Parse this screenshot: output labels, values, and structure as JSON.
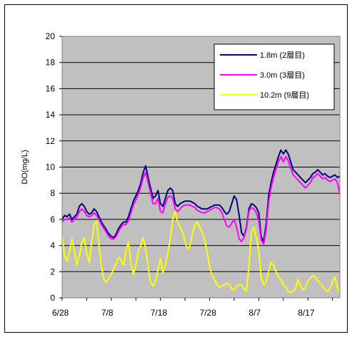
{
  "chart_data": {
    "type": "line",
    "title": "",
    "xlabel": "",
    "ylabel": "DO(mg/L)",
    "ylim": [
      0,
      20
    ],
    "xlim": [
      0,
      56.5
    ],
    "x_tick_labels": [
      "6/28",
      "7/8",
      "7/18",
      "7/28",
      "8/7",
      "8/17"
    ],
    "y_ticks": [
      0,
      2,
      4,
      6,
      8,
      10,
      12,
      14,
      16,
      18,
      20
    ],
    "y_tick_labels": [
      "0",
      "2",
      "4",
      "6",
      "8",
      "10",
      "12",
      "14",
      "16",
      "18",
      "20"
    ],
    "grid": "horizontal",
    "plot_background": "#c0c0c0",
    "legend_position": "top-right",
    "series": [
      {
        "name": "1.8m (2層目)",
        "color": "#000080",
        "x": [
          0,
          0.5,
          1,
          1.5,
          2,
          2.5,
          3,
          3.5,
          4,
          4.5,
          5,
          5.5,
          6,
          6.5,
          7,
          7.5,
          8,
          8.5,
          9,
          9.5,
          10,
          10.5,
          11,
          11.5,
          12,
          12.5,
          13,
          13.5,
          14,
          14.5,
          15,
          15.5,
          16,
          16.5,
          17,
          17.5,
          18,
          18.5,
          19,
          19.5,
          20,
          20.5,
          21,
          21.5,
          22,
          22.5,
          23,
          23.5,
          24,
          24.5,
          25,
          25.5,
          26,
          26.5,
          27,
          27.5,
          28,
          28.5,
          29,
          29.5,
          30,
          30.5,
          31,
          31.5,
          32,
          32.5,
          33,
          33.5,
          34,
          34.5,
          35,
          35.5,
          36,
          36.5,
          37,
          37.5,
          38,
          38.5,
          39,
          39.5,
          40,
          40.5,
          41,
          41.5,
          42,
          42.5,
          43,
          43.5,
          44,
          44.5,
          45,
          45.5,
          46,
          46.5,
          47,
          47.5,
          48,
          48.5,
          49,
          49.5,
          50,
          50.5,
          51,
          51.5,
          52,
          52.5,
          53,
          53.5,
          54,
          54.5,
          55,
          55.5,
          56,
          56.5
        ],
        "values": [
          6.0,
          6.3,
          6.2,
          6.4,
          6.0,
          6.2,
          6.4,
          7.0,
          7.2,
          7.0,
          6.6,
          6.4,
          6.5,
          6.8,
          6.6,
          6.2,
          5.8,
          5.5,
          5.2,
          4.9,
          4.7,
          4.6,
          4.9,
          5.3,
          5.6,
          5.8,
          5.8,
          6.2,
          6.8,
          7.4,
          7.8,
          8.2,
          8.8,
          9.6,
          10.1,
          9.2,
          8.4,
          7.6,
          7.8,
          8.2,
          7.2,
          7.0,
          7.6,
          8.2,
          8.4,
          8.2,
          7.2,
          7.0,
          7.2,
          7.3,
          7.4,
          7.4,
          7.4,
          7.3,
          7.2,
          7.0,
          6.9,
          6.8,
          6.8,
          6.8,
          6.9,
          7.0,
          7.1,
          7.1,
          7.1,
          6.9,
          6.6,
          6.4,
          6.6,
          7.2,
          7.8,
          7.5,
          6.3,
          5.0,
          4.7,
          5.4,
          6.8,
          7.2,
          7.1,
          6.9,
          6.5,
          4.7,
          4.3,
          5.6,
          7.8,
          8.8,
          9.6,
          10.2,
          10.8,
          11.3,
          11.0,
          11.3,
          11.0,
          10.4,
          9.8,
          9.6,
          9.4,
          9.2,
          9.0,
          8.8,
          9.0,
          9.2,
          9.5,
          9.6,
          9.8,
          9.6,
          9.4,
          9.5,
          9.3,
          9.2,
          9.3,
          9.4,
          9.2,
          9.3
        ],
        "x_note": "days since 6/28"
      },
      {
        "name": "3.0m (3層目)",
        "color": "#ff00ff",
        "x": [
          0,
          0.5,
          1,
          1.5,
          2,
          2.5,
          3,
          3.5,
          4,
          4.5,
          5,
          5.5,
          6,
          6.5,
          7,
          7.5,
          8,
          8.5,
          9,
          9.5,
          10,
          10.5,
          11,
          11.5,
          12,
          12.5,
          13,
          13.5,
          14,
          14.5,
          15,
          15.5,
          16,
          16.5,
          17,
          17.5,
          18,
          18.5,
          19,
          19.5,
          20,
          20.5,
          21,
          21.5,
          22,
          22.5,
          23,
          23.5,
          24,
          24.5,
          25,
          25.5,
          26,
          26.5,
          27,
          27.5,
          28,
          28.5,
          29,
          29.5,
          30,
          30.5,
          31,
          31.5,
          32,
          32.5,
          33,
          33.5,
          34,
          34.5,
          35,
          35.5,
          36,
          36.5,
          37,
          37.5,
          38,
          38.5,
          39,
          39.5,
          40,
          40.5,
          41,
          41.5,
          42,
          42.5,
          43,
          43.5,
          44,
          44.5,
          45,
          45.5,
          46,
          46.5,
          47,
          47.5,
          48,
          48.5,
          49,
          49.5,
          50,
          50.5,
          51,
          51.5,
          52,
          52.5,
          53,
          53.5,
          54,
          54.5,
          55,
          55.5,
          56,
          56.5
        ],
        "values": [
          5.8,
          6.0,
          6.0,
          6.1,
          5.8,
          6.0,
          6.2,
          6.6,
          6.8,
          6.6,
          6.3,
          6.2,
          6.3,
          6.5,
          6.3,
          6.0,
          5.6,
          5.3,
          5.0,
          4.7,
          4.5,
          4.5,
          4.7,
          5.1,
          5.4,
          5.6,
          5.6,
          5.9,
          6.5,
          7.1,
          7.5,
          7.9,
          8.5,
          9.2,
          9.6,
          8.8,
          8.0,
          7.2,
          7.2,
          7.6,
          6.6,
          6.5,
          7.2,
          7.7,
          7.8,
          7.6,
          6.8,
          6.6,
          6.8,
          7.0,
          7.1,
          7.1,
          7.1,
          7.0,
          6.9,
          6.7,
          6.6,
          6.5,
          6.5,
          6.6,
          6.7,
          6.8,
          6.9,
          6.9,
          6.8,
          6.5,
          6.0,
          5.5,
          5.4,
          5.7,
          6.0,
          5.4,
          4.5,
          4.3,
          4.6,
          5.3,
          6.6,
          6.9,
          6.8,
          6.5,
          5.9,
          4.4,
          4.1,
          5.2,
          7.3,
          8.4,
          9.2,
          9.8,
          10.4,
          10.8,
          10.4,
          10.8,
          10.5,
          9.9,
          9.4,
          9.2,
          9.0,
          8.8,
          8.6,
          8.4,
          8.6,
          8.8,
          9.2,
          9.3,
          9.5,
          9.3,
          9.1,
          9.2,
          9.0,
          8.9,
          9.0,
          9.1,
          8.8,
          7.9
        ],
        "x_note": "days since 6/28"
      },
      {
        "name": "10.2m (9層目)",
        "color": "#ffff00",
        "x": [
          0,
          0.5,
          1,
          1.5,
          2,
          2.5,
          3,
          3.5,
          4,
          4.5,
          5,
          5.5,
          6,
          6.5,
          7,
          7.5,
          8,
          8.5,
          9,
          9.5,
          10,
          10.5,
          11,
          11.5,
          12,
          12.5,
          13,
          13.5,
          14,
          14.5,
          15,
          15.5,
          16,
          16.5,
          17,
          17.5,
          18,
          18.5,
          19,
          19.5,
          20,
          20.5,
          21,
          21.5,
          22,
          22.5,
          23,
          23.5,
          24,
          24.5,
          25,
          25.5,
          26,
          26.5,
          27,
          27.5,
          28,
          28.5,
          29,
          29.5,
          30,
          30.5,
          31,
          31.5,
          32,
          32.5,
          33,
          33.5,
          34,
          34.5,
          35,
          35.5,
          36,
          36.5,
          37,
          37.5,
          38,
          38.5,
          39,
          39.5,
          40,
          40.5,
          41,
          41.5,
          42,
          42.5,
          43,
          43.5,
          44,
          44.5,
          45,
          45.5,
          46,
          46.5,
          47,
          47.5,
          48,
          48.5,
          49,
          49.5,
          50,
          50.5,
          51,
          51.5,
          52,
          52.5,
          53,
          53.5,
          54,
          54.5,
          55,
          55.5,
          56,
          56.5
        ],
        "values": [
          4.8,
          3.2,
          2.8,
          3.5,
          4.5,
          3.6,
          2.5,
          3.2,
          4.2,
          4.6,
          3.4,
          2.7,
          4.2,
          5.6,
          5.9,
          4.0,
          2.4,
          1.4,
          1.2,
          1.5,
          1.8,
          2.2,
          2.6,
          3.1,
          2.9,
          2.5,
          3.6,
          4.3,
          2.6,
          1.8,
          2.5,
          3.6,
          4.0,
          4.6,
          3.8,
          2.3,
          1.2,
          0.9,
          1.3,
          2.1,
          3.0,
          1.9,
          2.5,
          3.4,
          4.5,
          6.0,
          6.6,
          5.8,
          5.4,
          5.0,
          4.3,
          3.7,
          4.0,
          4.9,
          5.6,
          5.8,
          5.4,
          5.0,
          4.4,
          3.5,
          2.4,
          1.7,
          1.4,
          1.0,
          0.8,
          0.9,
          1.0,
          1.1,
          1.0,
          0.7,
          0.6,
          0.9,
          1.0,
          1.0,
          0.7,
          0.5,
          2.4,
          5.0,
          5.4,
          4.6,
          3.6,
          1.5,
          1.0,
          1.2,
          2.0,
          2.7,
          2.5,
          2.0,
          1.6,
          1.4,
          1.0,
          0.8,
          0.5,
          0.4,
          0.5,
          0.7,
          1.4,
          0.9,
          0.6,
          0.8,
          1.3,
          1.5,
          1.7,
          1.6,
          1.3,
          1.1,
          0.9,
          0.6,
          0.5,
          0.7,
          1.2,
          1.6,
          0.8,
          0.4
        ],
        "x_note": "days since 6/28"
      }
    ],
    "legend": {
      "entries": [
        "1.8m (2層目)",
        "3.0m (3層目)",
        "10.2m (9層目)"
      ]
    }
  }
}
